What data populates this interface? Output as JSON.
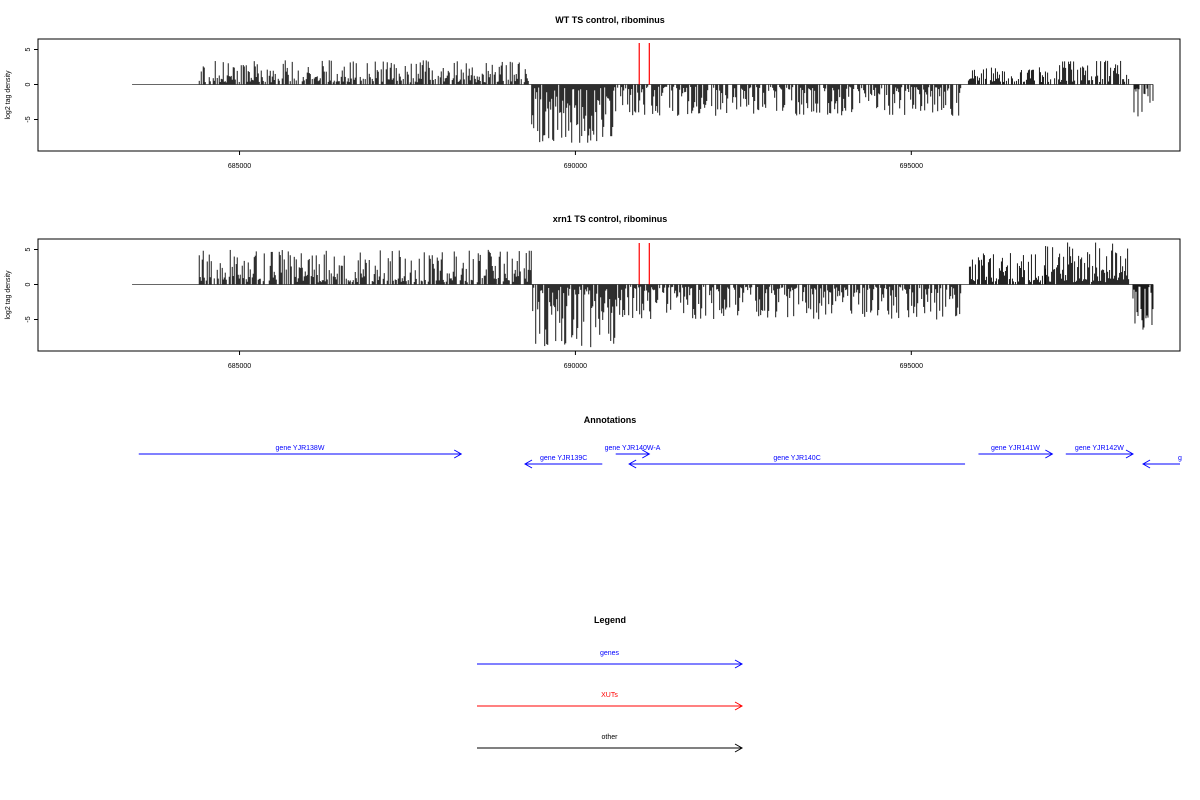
{
  "colors": {
    "gene": "#0000ff",
    "xut": "#ff0000",
    "other": "#000000",
    "axis": "#000000",
    "baseline": "#666666"
  },
  "chart_data": [
    {
      "type": "bar",
      "title": "WT TS control, ribominus",
      "xlabel": "",
      "ylabel": "log2 tag density",
      "xlim": [
        682000,
        699000
      ],
      "ylim": [
        -9.5,
        6.5
      ],
      "y_ticks": [
        -5,
        0,
        5
      ],
      "x_ticks": [
        685000,
        690000,
        695000
      ],
      "x_tick_labels": [
        "685000",
        "690000",
        "695000"
      ],
      "xut_marks_x": [
        690950,
        691100
      ],
      "segments": [
        {
          "start": 683400,
          "end": 684400,
          "sign": 0,
          "max": 0
        },
        {
          "start": 684400,
          "end": 689300,
          "sign": 1,
          "max": 3.5
        },
        {
          "start": 689350,
          "end": 690600,
          "sign": -1,
          "max": 8.5
        },
        {
          "start": 690600,
          "end": 695750,
          "sign": -1,
          "max": 4.5
        },
        {
          "start": 695850,
          "end": 697000,
          "sign": 1,
          "max": 2.5
        },
        {
          "start": 697000,
          "end": 698250,
          "sign": 1,
          "max": 3.5
        },
        {
          "start": 698300,
          "end": 698600,
          "sign": -1,
          "max": 5
        }
      ]
    },
    {
      "type": "bar",
      "title": "xrn1 TS control, ribominus",
      "xlabel": "",
      "ylabel": "log2 tag density",
      "xlim": [
        682000,
        699000
      ],
      "ylim": [
        -9.5,
        6.5
      ],
      "y_ticks": [
        -5,
        0,
        5
      ],
      "x_ticks": [
        685000,
        690000,
        695000
      ],
      "x_tick_labels": [
        "685000",
        "690000",
        "695000"
      ],
      "xut_marks_x": [
        690950,
        691100
      ],
      "segments": [
        {
          "start": 683400,
          "end": 684400,
          "sign": 0,
          "max": 0
        },
        {
          "start": 684400,
          "end": 689350,
          "sign": 1,
          "max": 5
        },
        {
          "start": 689350,
          "end": 690600,
          "sign": -1,
          "max": 9
        },
        {
          "start": 690600,
          "end": 695750,
          "sign": -1,
          "max": 5
        },
        {
          "start": 695850,
          "end": 697000,
          "sign": 1,
          "max": 4.5
        },
        {
          "start": 697000,
          "end": 698250,
          "sign": 1,
          "max": 6
        },
        {
          "start": 698300,
          "end": 698600,
          "sign": -1,
          "max": 6.5
        }
      ]
    }
  ],
  "annotations": {
    "title": "Annotations",
    "genes": [
      {
        "label": "gene YJR138W",
        "start": 683500,
        "end": 688300,
        "dir": "right",
        "row": 0
      },
      {
        "label": "gene YJR139C",
        "start": 689250,
        "end": 690400,
        "dir": "left",
        "row": 1
      },
      {
        "label": "gene YJR140W-A",
        "start": 690600,
        "end": 691100,
        "dir": "right",
        "row": 0
      },
      {
        "label": "gene YJR140C",
        "start": 690800,
        "end": 695800,
        "dir": "left",
        "row": 1
      },
      {
        "label": "gene YJR141W",
        "start": 696000,
        "end": 697100,
        "dir": "right",
        "row": 0
      },
      {
        "label": "gene YJR142W",
        "start": 697300,
        "end": 698300,
        "dir": "right",
        "row": 0
      },
      {
        "label": "g",
        "start": 698450,
        "end": 699000,
        "dir": "left",
        "row": 1
      }
    ]
  },
  "legend": {
    "title": "Legend",
    "items": [
      {
        "label": "genes",
        "color": "#0000ff"
      },
      {
        "label": "XUTs",
        "color": "#ff0000"
      },
      {
        "label": "other",
        "color": "#000000"
      }
    ]
  }
}
